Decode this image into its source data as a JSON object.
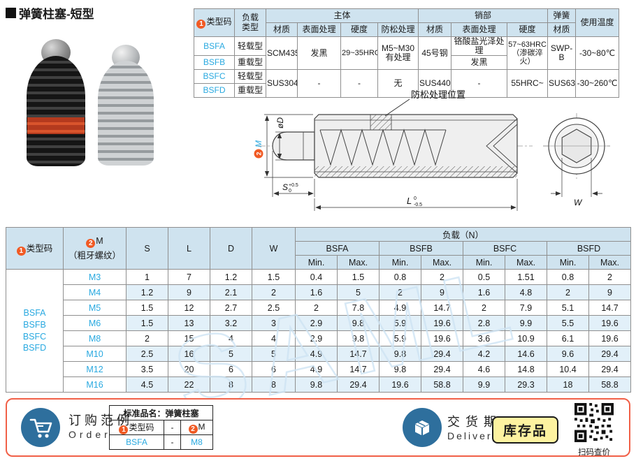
{
  "page": {
    "title": "弹簧柱塞-短型",
    "watermark": "SAML"
  },
  "badges": {
    "one": "1",
    "two": "2"
  },
  "spec_table": {
    "type_col": "类型码",
    "load_col": "负载\n类型",
    "body_group": "主体",
    "pin_group": "销部",
    "spring_group": "弹簧",
    "temp_col": "使用温度",
    "material": "材质",
    "surface": "表面处理",
    "hardness": "硬度",
    "antiloose": "防松处理",
    "spring_material": "材质",
    "rows": {
      "bsfa": "BSFA",
      "bsfb": "BSFB",
      "bsfc": "BSFC",
      "bsfd": "BSFD",
      "light": "轻载型",
      "heavy": "重载型",
      "body_mat_ab": "SCM435",
      "body_surf_ab": "发黑",
      "body_hard_ab": "29~35HRC",
      "antiloose_ab": "M5~M30\n有处理",
      "body_mat_cd": "SUS304",
      "body_surf_cd": "-",
      "body_hard_cd": "-",
      "antiloose_cd": "无",
      "pin_mat_ab": "45号钢",
      "pin_surf_a": "铬酸盐光泽处理",
      "pin_surf_b": "发黑",
      "pin_hard_ab": "57~63HRC\n（渗碳淬火）",
      "pin_mat_cd": "SUS440C",
      "pin_surf_cd": "-",
      "pin_hard_cd": "55HRC~",
      "spring_ab": "SWP-B",
      "spring_cd": "SUS631",
      "temp_ab": "-30~80℃",
      "temp_cd": "-30~260℃"
    }
  },
  "drawing": {
    "antiloose_pos": "防松处理位置",
    "m_label": "M",
    "d_label": "øD",
    "s_label": "S",
    "s_tol_up": "+0.5",
    "s_tol_dn": "0",
    "l_label": "L",
    "l_tol_up": "0",
    "l_tol_dn": "-0.5",
    "w_label": "W"
  },
  "dim_table": {
    "type_header": "类型码",
    "m_header": "M",
    "m_subheader": "（粗牙螺纹）",
    "s": "S",
    "l": "L",
    "d": "D",
    "w": "W",
    "load_header": "负载（N）",
    "series": [
      "BSFA",
      "BSFB",
      "BSFC",
      "BSFD"
    ],
    "min_label": "Min.",
    "max_label": "Max.",
    "type_codes": [
      "BSFA",
      "BSFB",
      "BSFC",
      "BSFD"
    ],
    "rows": [
      {
        "m": "M3",
        "s": "1",
        "l": "7",
        "d": "1.2",
        "w": "1.5",
        "loads": [
          "0.4",
          "1.5",
          "0.8",
          "2",
          "0.5",
          "1.51",
          "0.8",
          "2"
        ]
      },
      {
        "m": "M4",
        "s": "1.2",
        "l": "9",
        "d": "2.1",
        "w": "2",
        "loads": [
          "1.6",
          "5",
          "2",
          "9",
          "1.6",
          "4.8",
          "2",
          "9"
        ]
      },
      {
        "m": "M5",
        "s": "1.5",
        "l": "12",
        "d": "2.7",
        "w": "2.5",
        "loads": [
          "2",
          "7.8",
          "4.9",
          "14.7",
          "2",
          "7.9",
          "5.1",
          "14.7"
        ]
      },
      {
        "m": "M6",
        "s": "1.5",
        "l": "13",
        "d": "3.2",
        "w": "3",
        "loads": [
          "2.9",
          "9.8",
          "5.9",
          "19.6",
          "2.8",
          "9.9",
          "5.5",
          "19.6"
        ]
      },
      {
        "m": "M8",
        "s": "2",
        "l": "15",
        "d": "4",
        "w": "4",
        "loads": [
          "2.9",
          "9.8",
          "5.9",
          "19.6",
          "3.6",
          "10.9",
          "6.1",
          "19.6"
        ]
      },
      {
        "m": "M10",
        "s": "2.5",
        "l": "16",
        "d": "5",
        "w": "5",
        "loads": [
          "4.9",
          "14.7",
          "9.8",
          "29.4",
          "4.2",
          "14.6",
          "9.6",
          "29.4"
        ]
      },
      {
        "m": "M12",
        "s": "3.5",
        "l": "20",
        "d": "6",
        "w": "6",
        "loads": [
          "4.9",
          "14.7",
          "9.8",
          "29.4",
          "4.6",
          "14.8",
          "10.4",
          "29.4"
        ]
      },
      {
        "m": "M16",
        "s": "4.5",
        "l": "22",
        "d": "8",
        "w": "8",
        "loads": [
          "9.8",
          "29.4",
          "19.6",
          "58.8",
          "9.9",
          "29.3",
          "18",
          "58.8"
        ]
      }
    ]
  },
  "footer": {
    "order_cn": "订购范例",
    "order_en": "Order",
    "std_name": "标准品名：弹簧柱塞",
    "h_type": "类型码",
    "dash": "-",
    "h_m": "M",
    "v_type": "BSFA",
    "v_m": "M8",
    "delivery_cn": "交货期",
    "delivery_en": "Delivery",
    "stock": "库存品",
    "qr_caption": "扫码查价"
  },
  "colors": {
    "accent_orange": "#f15a24",
    "link_blue": "#29a9e0",
    "header_blue": "#cfe3ef",
    "stripe_blue": "#e2f0f9",
    "icon_blue": "#2e6f9d",
    "footer_border": "#f16048",
    "stock_yellow": "#fdf2a0"
  }
}
